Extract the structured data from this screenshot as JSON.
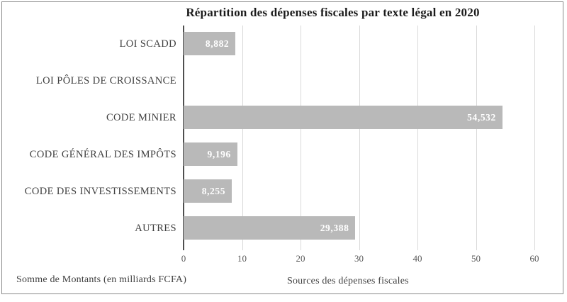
{
  "chart_data": {
    "type": "bar",
    "orientation": "horizontal",
    "title": "Répartition des dépenses fiscales  par texte légal en 2020",
    "categories": [
      "LOI SCADD",
      "LOI PÔLES DE CROISSANCE",
      "CODE MINIER",
      "CODE GÉNÉRAL DES IMPÔTS",
      "CODE DES INVESTISSEMENTS",
      "AUTRES"
    ],
    "values": [
      8.882,
      0,
      54.532,
      9.196,
      8.255,
      29.388
    ],
    "value_labels": [
      "8,882",
      "",
      "54,532",
      "9,196",
      "8,255",
      "29,388"
    ],
    "xlim": [
      0,
      60
    ],
    "xticks": [
      0,
      10,
      20,
      30,
      40,
      50,
      60
    ],
    "xlabel": "Sources des dépenses fiscales",
    "footnote_left": "Somme de Montants (en milliards  FCFA)",
    "grid": "vertical",
    "legend": "none",
    "colors": {
      "bar": "#b9b9b9",
      "bar_label": "#ffffff",
      "gridline": "#d9d9d9",
      "axis_line": "#4f4f4f",
      "title_text": "#1b1b1b",
      "category_text": "#3f3f3f",
      "tick_text": "#595959",
      "frame_border": "#8a8a8a"
    }
  }
}
